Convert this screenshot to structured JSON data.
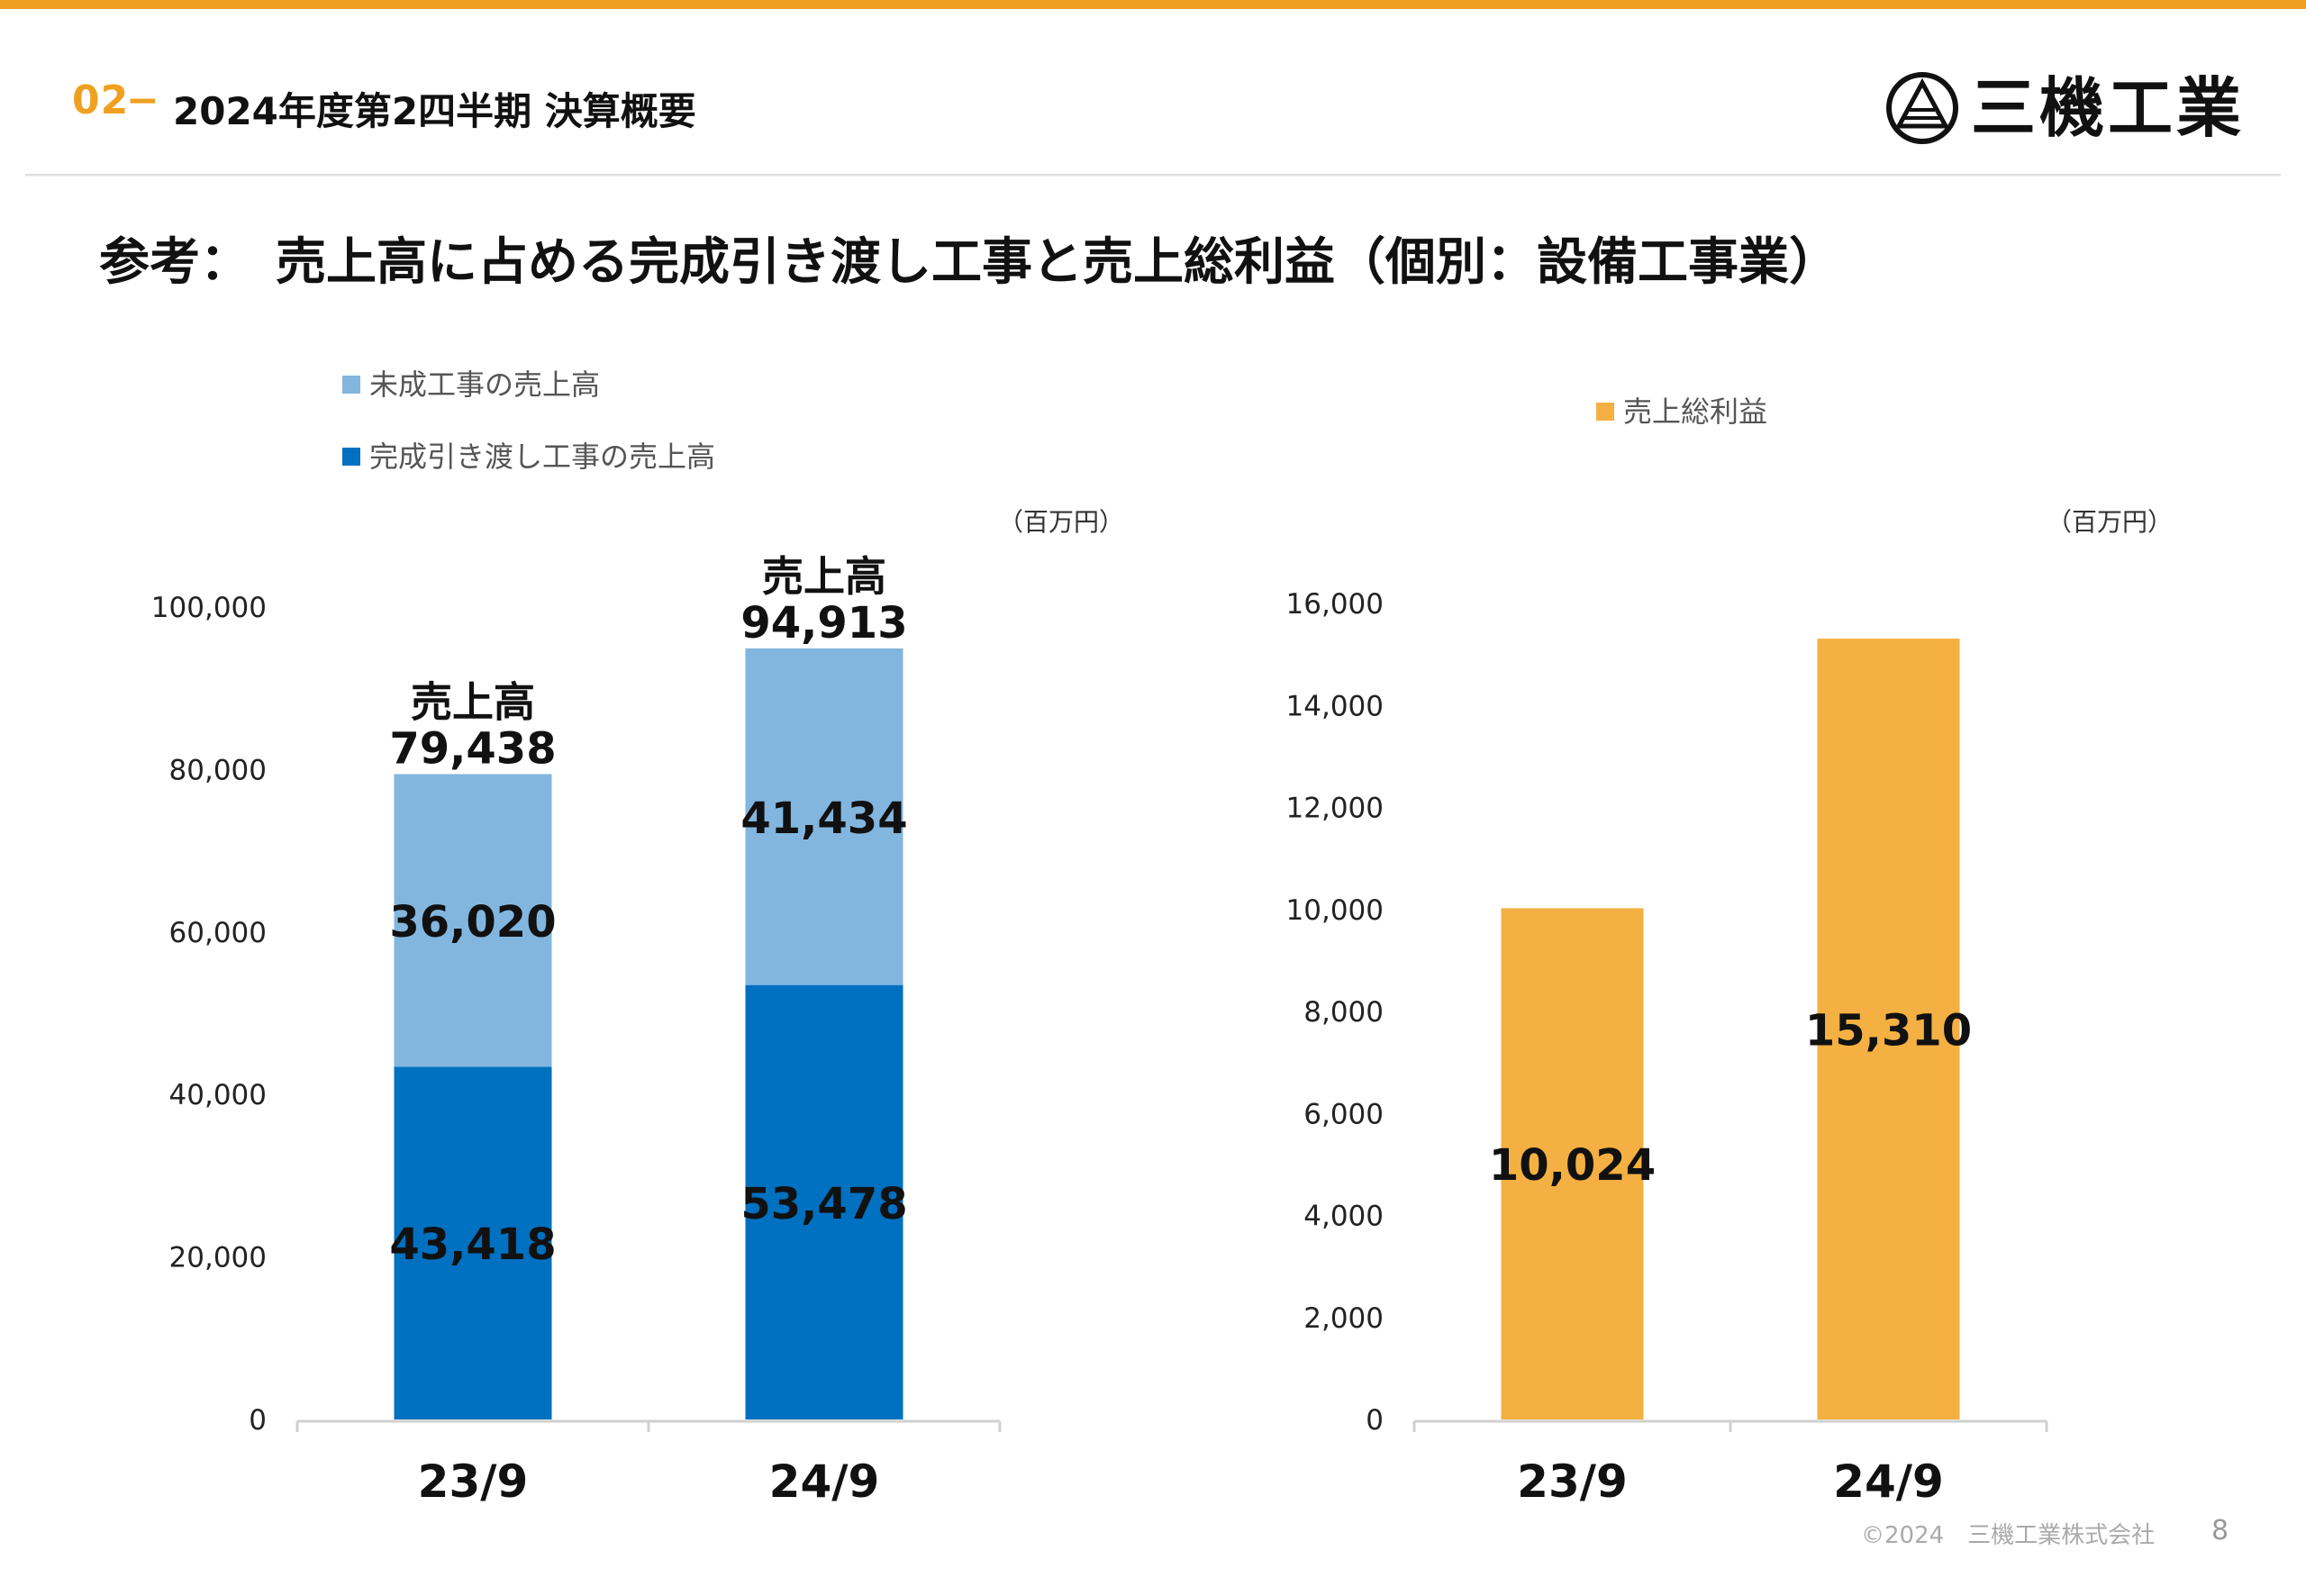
{
  "header": {
    "section_number": "02",
    "section_dash": "−",
    "section_title": "2024年度第2四半期 決算概要",
    "logo_text": "三機工業",
    "accent_color": "#f0a020"
  },
  "page_heading": "参考：　売上高に占める完成引き渡し工事と売上総利益（個別：設備工事業）",
  "left_legend": [
    {
      "label": "未成工事の売上高",
      "color": "#82b6df"
    },
    {
      "label": "完成引き渡し工事の売上高",
      "color": "#0070c0"
    }
  ],
  "right_legend": [
    {
      "label": "売上総利益",
      "color": "#f4b042"
    }
  ],
  "left_unit": "（百万円）",
  "right_unit": "（百万円）",
  "chart_data": [
    {
      "type": "bar",
      "stacked": true,
      "categories": [
        "23/9",
        "24/9"
      ],
      "series": [
        {
          "name": "完成引き渡し工事の売上高",
          "values": [
            43418,
            53478
          ],
          "labels": [
            "43,418",
            "53,478"
          ],
          "color": "#0070c0"
        },
        {
          "name": "未成工事の売上高",
          "values": [
            36020,
            41434
          ],
          "labels": [
            "36,020",
            "41,434"
          ],
          "color": "#82b6df"
        }
      ],
      "totals": [
        {
          "caption": "売上高",
          "value": "79,438"
        },
        {
          "caption": "売上高",
          "value": "94,913"
        }
      ],
      "ylim": [
        0,
        100000
      ],
      "yticks": [
        0,
        20000,
        40000,
        60000,
        80000,
        100000
      ],
      "ytick_labels": [
        "0",
        "20,000",
        "40,000",
        "60,000",
        "80,000",
        "100,000"
      ],
      "unit": "（百万円）",
      "legend": "top-left",
      "grid": false
    },
    {
      "type": "bar",
      "categories": [
        "23/9",
        "24/9"
      ],
      "series": [
        {
          "name": "売上総利益",
          "values": [
            10024,
            15310
          ],
          "labels": [
            "10,024",
            "15,310"
          ],
          "color": "#f4b042"
        }
      ],
      "ylim": [
        0,
        16000
      ],
      "yticks": [
        0,
        2000,
        4000,
        6000,
        8000,
        10000,
        12000,
        14000,
        16000
      ],
      "ytick_labels": [
        "0",
        "2,000",
        "4,000",
        "6,000",
        "8,000",
        "10,000",
        "12,000",
        "14,000",
        "16,000"
      ],
      "unit": "（百万円）",
      "legend": "top",
      "grid": false
    }
  ],
  "footer": {
    "copyright": "©2024　三機工業株式会社",
    "page_number": "8"
  }
}
